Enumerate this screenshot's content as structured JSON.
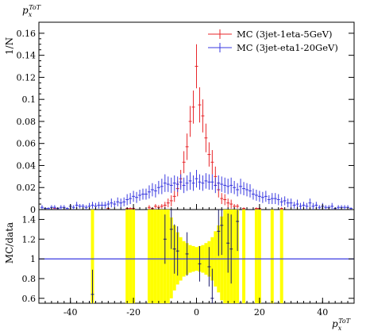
{
  "chart_data": [
    {
      "type": "scatter",
      "panel": "main",
      "title": "",
      "corner_label_main": "p",
      "corner_label_sub": "x",
      "corner_label_sup": "ToT",
      "ylabel": "1/N",
      "xlim": [
        -50,
        50
      ],
      "ylim": [
        0,
        0.17
      ],
      "yticks": [
        0,
        0.02,
        0.04,
        0.06,
        0.08,
        0.1,
        0.12,
        0.14,
        0.16
      ],
      "ytick_labels": [
        "0",
        "0.02",
        "0.04",
        "0.06",
        "0.08",
        "0.1",
        "0.12",
        "0.14",
        "0.16"
      ],
      "legend_position": "top-right",
      "series": [
        {
          "name": "MC (3jet-1eta-5GeV)",
          "color": "#e8262a",
          "bin_width": 1,
          "x": [
            -45,
            -28,
            -22,
            -21,
            -20,
            -15,
            -14,
            -13,
            -12,
            -11,
            -10,
            -9,
            -8,
            -7,
            -6,
            -5,
            -4,
            -3,
            -2,
            -1,
            0,
            1,
            2,
            3,
            4,
            5,
            6,
            7,
            8,
            9,
            10,
            11,
            12,
            13,
            15,
            19,
            20,
            27
          ],
          "y": [
            0.001,
            0.001,
            0.001,
            0.001,
            0.001,
            0.002,
            0.001,
            0.003,
            0.002,
            0.003,
            0.004,
            0.006,
            0.008,
            0.012,
            0.019,
            0.028,
            0.043,
            0.057,
            0.08,
            0.093,
            0.13,
            0.095,
            0.085,
            0.065,
            0.05,
            0.043,
            0.03,
            0.018,
            0.01,
            0.009,
            0.006,
            0.005,
            0.003,
            0.003,
            0.001,
            0.001,
            0.001,
            0.001
          ],
          "err": [
            0.001,
            0.001,
            0.001,
            0.001,
            0.001,
            0.002,
            0.001,
            0.002,
            0.002,
            0.002,
            0.003,
            0.004,
            0.005,
            0.005,
            0.007,
            0.008,
            0.01,
            0.012,
            0.014,
            0.015,
            0.02,
            0.016,
            0.015,
            0.013,
            0.011,
            0.011,
            0.009,
            0.007,
            0.005,
            0.005,
            0.004,
            0.004,
            0.002,
            0.002,
            0.001,
            0.001,
            0.001,
            0.001
          ]
        },
        {
          "name": "MC (3jet-eta1-20GeV)",
          "color": "#3a3ae0",
          "bin_width": 1,
          "x": [
            -49,
            -48,
            -47,
            -46,
            -45,
            -44,
            -43,
            -42,
            -41,
            -40,
            -39,
            -38,
            -37,
            -36,
            -35,
            -34,
            -33,
            -32,
            -31,
            -30,
            -29,
            -28,
            -27,
            -26,
            -25,
            -24,
            -23,
            -22,
            -21,
            -20,
            -19,
            -18,
            -17,
            -16,
            -15,
            -14,
            -13,
            -12,
            -11,
            -10,
            -9,
            -8,
            -7,
            -6,
            -5,
            -4,
            -3,
            -2,
            -1,
            0,
            1,
            2,
            3,
            4,
            5,
            6,
            7,
            8,
            9,
            10,
            11,
            12,
            13,
            14,
            15,
            16,
            17,
            18,
            19,
            20,
            21,
            22,
            23,
            24,
            25,
            26,
            27,
            28,
            29,
            30,
            31,
            32,
            33,
            34,
            35,
            36,
            37,
            38,
            39,
            40,
            41,
            42,
            43,
            44,
            45,
            46,
            47,
            48,
            49
          ],
          "y": [
            0.002,
            0.001,
            0.001,
            0.002,
            0.002,
            0.001,
            0.002,
            0.002,
            0.001,
            0.003,
            0.002,
            0.004,
            0.003,
            0.003,
            0.002,
            0.003,
            0.004,
            0.003,
            0.004,
            0.004,
            0.004,
            0.005,
            0.006,
            0.005,
            0.007,
            0.006,
            0.007,
            0.009,
            0.01,
            0.012,
            0.011,
            0.013,
            0.014,
            0.014,
            0.016,
            0.018,
            0.017,
            0.02,
            0.021,
            0.024,
            0.023,
            0.022,
            0.024,
            0.023,
            0.025,
            0.022,
            0.024,
            0.026,
            0.024,
            0.028,
            0.025,
            0.024,
            0.026,
            0.025,
            0.025,
            0.022,
            0.024,
            0.023,
            0.022,
            0.021,
            0.022,
            0.02,
            0.018,
            0.021,
            0.019,
            0.018,
            0.017,
            0.014,
            0.013,
            0.012,
            0.011,
            0.012,
            0.009,
            0.01,
            0.01,
            0.009,
            0.007,
            0.008,
            0.006,
            0.006,
            0.004,
            0.005,
            0.003,
            0.004,
            0.003,
            0.006,
            0.003,
            0.004,
            0.002,
            0.003,
            0.002,
            0.002,
            0.003,
            0.001,
            0.002,
            0.002,
            0.002,
            0.002,
            0.001
          ],
          "err": [
            0.002,
            0.001,
            0.001,
            0.002,
            0.002,
            0.001,
            0.002,
            0.002,
            0.001,
            0.002,
            0.002,
            0.003,
            0.002,
            0.002,
            0.002,
            0.003,
            0.003,
            0.003,
            0.003,
            0.003,
            0.003,
            0.003,
            0.004,
            0.003,
            0.004,
            0.004,
            0.004,
            0.005,
            0.005,
            0.005,
            0.005,
            0.005,
            0.005,
            0.005,
            0.006,
            0.006,
            0.006,
            0.006,
            0.007,
            0.008,
            0.007,
            0.007,
            0.007,
            0.007,
            0.007,
            0.007,
            0.007,
            0.008,
            0.007,
            0.008,
            0.007,
            0.007,
            0.007,
            0.007,
            0.007,
            0.007,
            0.007,
            0.007,
            0.007,
            0.007,
            0.007,
            0.006,
            0.006,
            0.007,
            0.006,
            0.006,
            0.006,
            0.005,
            0.005,
            0.005,
            0.005,
            0.005,
            0.004,
            0.005,
            0.005,
            0.005,
            0.004,
            0.004,
            0.004,
            0.004,
            0.003,
            0.004,
            0.003,
            0.003,
            0.003,
            0.004,
            0.003,
            0.003,
            0.002,
            0.003,
            0.002,
            0.002,
            0.003,
            0.001,
            0.002,
            0.002,
            0.002,
            0.002,
            0.001
          ]
        }
      ]
    },
    {
      "type": "scatter",
      "panel": "ratio",
      "ylabel": "MC/data",
      "xlabel_main": "p",
      "xlabel_sub": "x",
      "xlabel_sup": "ToT",
      "xlim": [
        -50,
        50
      ],
      "ylim": [
        0.55,
        1.5
      ],
      "yticks": [
        0.6,
        0.8,
        1,
        1.2,
        1.4
      ],
      "ytick_labels": [
        "0.6",
        "0.8",
        "1",
        "1.2",
        "1.4"
      ],
      "xticks": [
        -40,
        -20,
        0,
        20,
        40
      ],
      "xtick_labels": [
        "-40",
        "-20",
        "0",
        "20",
        "40"
      ],
      "reference_line": 1,
      "band_color": "#ffff00",
      "band": {
        "x": [
          -33,
          -22,
          -21,
          -20,
          -15,
          -14,
          -13,
          -12,
          -11,
          -10,
          -9,
          -8,
          -7,
          -6,
          -5,
          -4,
          -3,
          -2,
          -1,
          0,
          1,
          2,
          3,
          4,
          5,
          6,
          7,
          8,
          9,
          10,
          11,
          12,
          13,
          15,
          19,
          20,
          24,
          27
        ],
        "lo": [
          0.55,
          0.55,
          0.55,
          0.55,
          0.55,
          0.55,
          0.55,
          0.55,
          0.55,
          0.55,
          0.55,
          0.6,
          0.68,
          0.74,
          0.78,
          0.82,
          0.84,
          0.86,
          0.87,
          0.88,
          0.87,
          0.86,
          0.84,
          0.82,
          0.78,
          0.72,
          0.66,
          0.58,
          0.55,
          0.55,
          0.55,
          0.55,
          0.55,
          0.55,
          0.55,
          0.55,
          0.55,
          0.55
        ],
        "hi": [
          1.5,
          1.5,
          1.5,
          1.5,
          1.5,
          1.5,
          1.5,
          1.5,
          1.5,
          1.5,
          1.5,
          1.42,
          1.34,
          1.27,
          1.22,
          1.18,
          1.16,
          1.14,
          1.13,
          1.12,
          1.13,
          1.14,
          1.16,
          1.18,
          1.22,
          1.28,
          1.34,
          1.43,
          1.5,
          1.5,
          1.5,
          1.5,
          1.5,
          1.5,
          1.5,
          1.5,
          1.5,
          1.5
        ]
      },
      "points": {
        "x": [
          -33,
          -10,
          -8,
          -7,
          -6,
          -3,
          1,
          4,
          5,
          7,
          8,
          10,
          11,
          13
        ],
        "y": [
          0.64,
          1.2,
          1.3,
          1.1,
          1.08,
          1.05,
          0.95,
          0.92,
          0.6,
          1.28,
          1.34,
          1.16,
          1.1,
          1.38
        ],
        "err": [
          0.25,
          0.25,
          0.2,
          0.25,
          0.25,
          0.22,
          0.18,
          0.2,
          0.3,
          0.25,
          0.3,
          0.3,
          0.35,
          0.3
        ]
      }
    }
  ],
  "colors": {
    "red": "#e8262a",
    "blue": "#3a3ae0",
    "band": "#ffff00"
  }
}
